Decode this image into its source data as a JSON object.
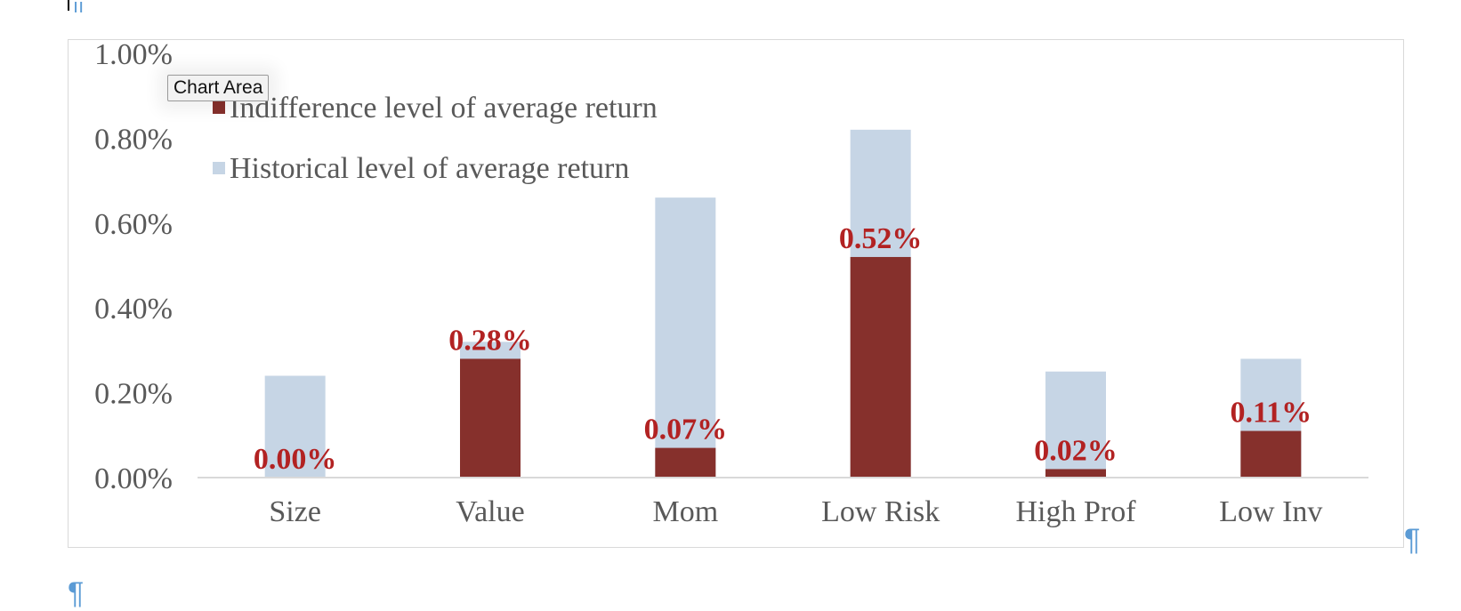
{
  "chart_data": {
    "type": "bar",
    "categories": [
      "Size",
      "Value",
      "Mom",
      "Low Risk",
      "High Prof",
      "Low Inv"
    ],
    "series": [
      {
        "name": "Indifference level of average return",
        "values": [
          0.0,
          0.28,
          0.07,
          0.52,
          0.02,
          0.11
        ],
        "color": "#86302c"
      },
      {
        "name": "Historical level of average return",
        "values": [
          0.24,
          0.32,
          0.66,
          0.82,
          0.25,
          0.28
        ],
        "color": "#c6d5e5"
      }
    ],
    "data_labels": [
      "0.00%",
      "0.28%",
      "0.07%",
      "0.52%",
      "0.02%",
      "0.11%"
    ],
    "y_ticks": [
      "0.00%",
      "0.20%",
      "0.40%",
      "0.60%",
      "0.80%",
      "1.00%"
    ],
    "ylim": [
      0,
      1.0
    ],
    "unit": "%",
    "grid": false,
    "overlap": true,
    "legend_position": "top-left",
    "label_color": "#b22222"
  },
  "tooltip": "Chart Area",
  "paragraph_mark": "¶"
}
